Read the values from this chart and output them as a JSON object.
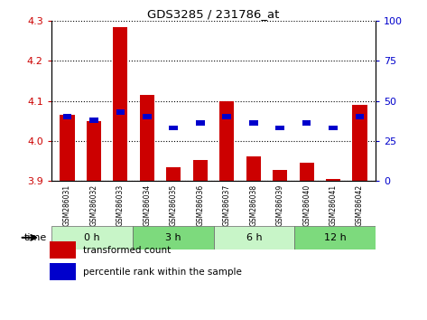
{
  "title": "GDS3285 / 231786_at",
  "samples": [
    "GSM286031",
    "GSM286032",
    "GSM286033",
    "GSM286034",
    "GSM286035",
    "GSM286036",
    "GSM286037",
    "GSM286038",
    "GSM286039",
    "GSM286040",
    "GSM286041",
    "GSM286042"
  ],
  "red_values": [
    4.065,
    4.05,
    4.285,
    4.115,
    3.935,
    3.952,
    4.1,
    3.962,
    3.928,
    3.945,
    3.905,
    4.09
  ],
  "blue_percentiles": [
    40,
    38,
    43,
    40,
    33,
    36,
    40,
    36,
    33,
    36,
    33,
    40
  ],
  "ylim_left": [
    3.9,
    4.3
  ],
  "ylim_right": [
    0,
    100
  ],
  "yticks_left": [
    3.9,
    4.0,
    4.1,
    4.2,
    4.3
  ],
  "yticks_right": [
    0,
    25,
    50,
    75,
    100
  ],
  "groups": [
    {
      "label": "0 h",
      "start": 0,
      "end": 3,
      "color": "#c8f5c8"
    },
    {
      "label": "3 h",
      "start": 3,
      "end": 6,
      "color": "#7dda7d"
    },
    {
      "label": "6 h",
      "start": 6,
      "end": 9,
      "color": "#c8f5c8"
    },
    {
      "label": "12 h",
      "start": 9,
      "end": 12,
      "color": "#7dda7d"
    }
  ],
  "baseline": 3.9,
  "red_color": "#cc0000",
  "blue_color": "#0000cc",
  "grid_color": "#000000",
  "bg_color": "#ffffff",
  "tick_color_left": "#cc0000",
  "tick_color_right": "#0000cc",
  "label_bg_color": "#d4d4d4",
  "legend_red": "transformed count",
  "legend_blue": "percentile rank within the sample"
}
